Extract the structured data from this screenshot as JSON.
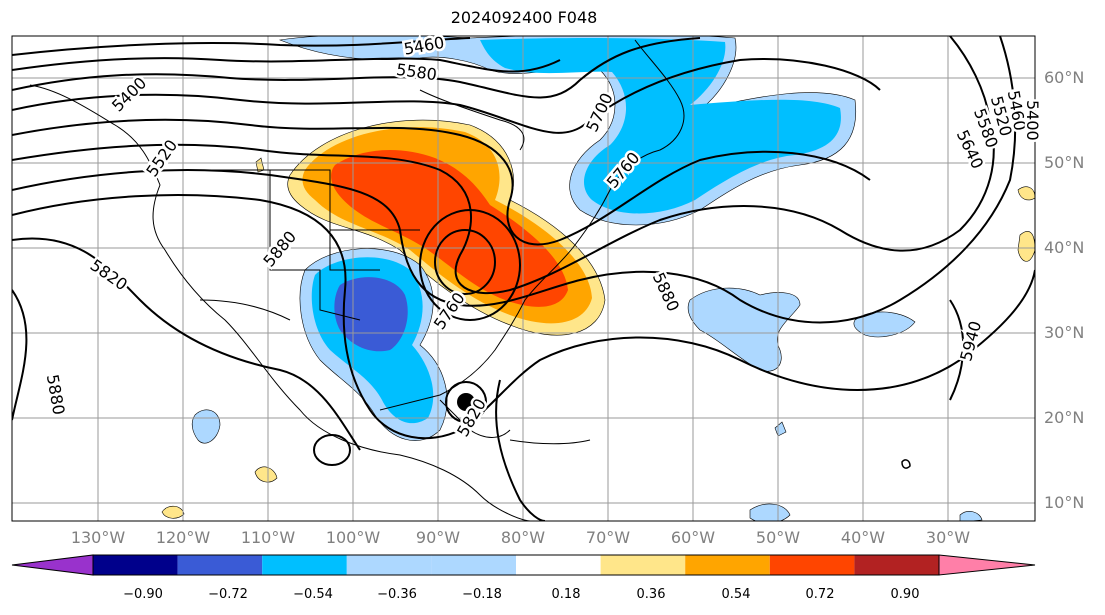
{
  "title": "2024092400 F048",
  "lon_labels": [
    "130°W",
    "120°W",
    "110°W",
    "100°W",
    "90°W",
    "80°W",
    "70°W",
    "60°W",
    "50°W",
    "40°W",
    "30°W"
  ],
  "lat_labels": [
    "60°N",
    "50°N",
    "40°N",
    "30°N",
    "20°N",
    "10°N"
  ],
  "contour_labels": [
    "5400",
    "5460",
    "5580",
    "5520",
    "5700",
    "5760",
    "5880",
    "5820",
    "5760",
    "5880",
    "5640",
    "5580",
    "5520",
    "5460",
    "5400",
    "5940",
    "5880",
    "5820"
  ],
  "colorbar": {
    "colors": [
      "#9932cc",
      "#00008b",
      "#3a5bd6",
      "#00bfff",
      "#add8ff",
      "#ffffff",
      "#ffe68a",
      "#ffa500",
      "#ff4500",
      "#b22222",
      "#ff7fa8"
    ],
    "ticks": [
      "−0.90",
      "−0.72",
      "−0.54",
      "−0.36",
      "−0.18",
      "0.18",
      "0.36",
      "0.54",
      "0.72",
      "0.90"
    ]
  },
  "colors": {
    "warm_outer": "#ffe68a",
    "warm_mid": "#ffa500",
    "warm_core": "#ff4500",
    "cool_outer": "#add8ff",
    "cool_mid": "#00bfff",
    "cool_core": "#3a5bd6"
  },
  "marker": "storm-center"
}
